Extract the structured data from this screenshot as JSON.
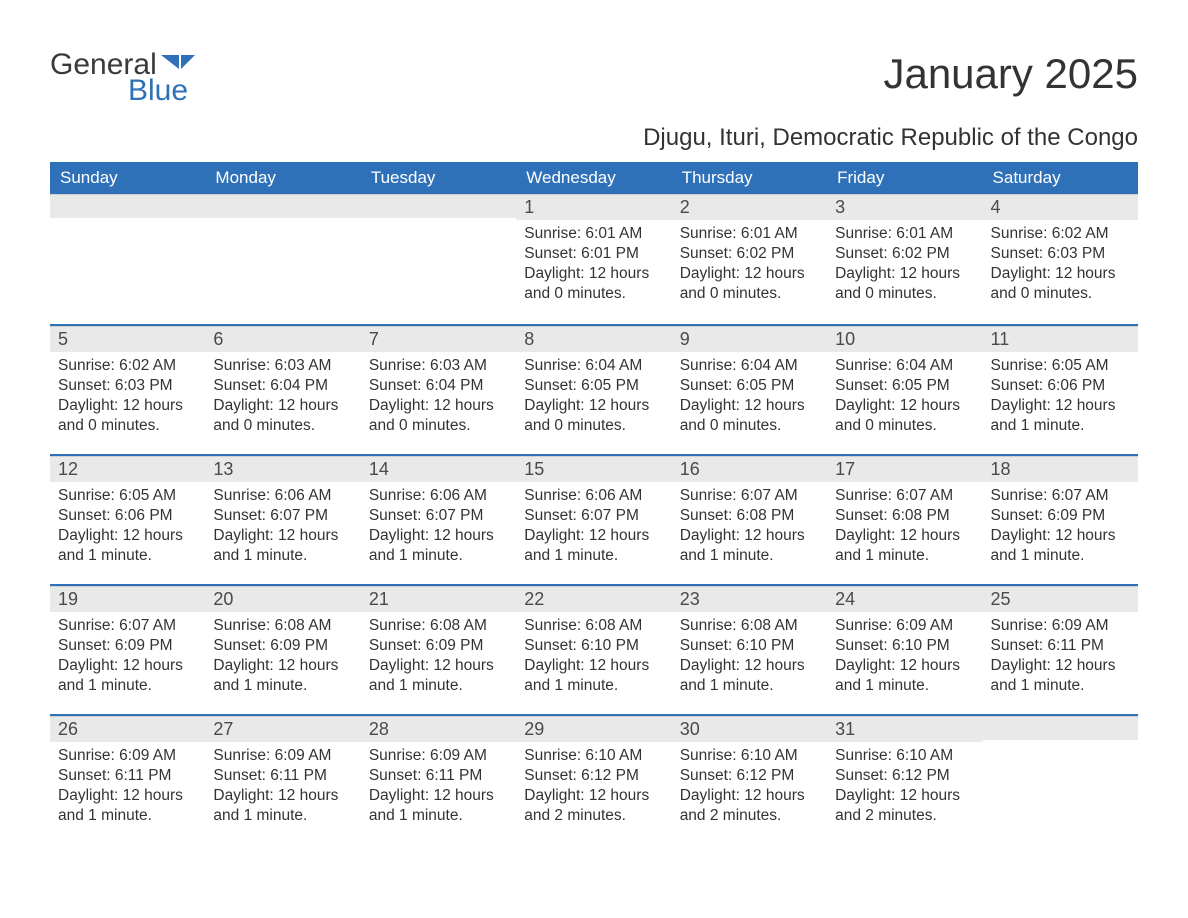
{
  "brand": {
    "part1": "General",
    "part2": "Blue",
    "color1": "#3a3a3a",
    "color2": "#2f71b8"
  },
  "title": "January 2025",
  "location": "Djugu, Ituri, Democratic Republic of the Congo",
  "labels": {
    "sunrise": "Sunrise:",
    "sunset": "Sunset:",
    "daylight": "Daylight:"
  },
  "colors": {
    "header_bg": "#2f71b8",
    "header_text": "#ffffff",
    "daynum_bg": "#e9e9e9",
    "week_border": "#2f71b8",
    "text": "#333333",
    "background": "#ffffff"
  },
  "fontsizes": {
    "title": 42,
    "subtitle": 24,
    "dayheader": 17,
    "daynum": 18,
    "info": 15.5
  },
  "day_headers": [
    "Sunday",
    "Monday",
    "Tuesday",
    "Wednesday",
    "Thursday",
    "Friday",
    "Saturday"
  ],
  "weeks": [
    [
      null,
      null,
      null,
      {
        "n": "1",
        "sunrise": "6:01 AM",
        "sunset": "6:01 PM",
        "daylight": "12 hours and 0 minutes."
      },
      {
        "n": "2",
        "sunrise": "6:01 AM",
        "sunset": "6:02 PM",
        "daylight": "12 hours and 0 minutes."
      },
      {
        "n": "3",
        "sunrise": "6:01 AM",
        "sunset": "6:02 PM",
        "daylight": "12 hours and 0 minutes."
      },
      {
        "n": "4",
        "sunrise": "6:02 AM",
        "sunset": "6:03 PM",
        "daylight": "12 hours and 0 minutes."
      }
    ],
    [
      {
        "n": "5",
        "sunrise": "6:02 AM",
        "sunset": "6:03 PM",
        "daylight": "12 hours and 0 minutes."
      },
      {
        "n": "6",
        "sunrise": "6:03 AM",
        "sunset": "6:04 PM",
        "daylight": "12 hours and 0 minutes."
      },
      {
        "n": "7",
        "sunrise": "6:03 AM",
        "sunset": "6:04 PM",
        "daylight": "12 hours and 0 minutes."
      },
      {
        "n": "8",
        "sunrise": "6:04 AM",
        "sunset": "6:05 PM",
        "daylight": "12 hours and 0 minutes."
      },
      {
        "n": "9",
        "sunrise": "6:04 AM",
        "sunset": "6:05 PM",
        "daylight": "12 hours and 0 minutes."
      },
      {
        "n": "10",
        "sunrise": "6:04 AM",
        "sunset": "6:05 PM",
        "daylight": "12 hours and 0 minutes."
      },
      {
        "n": "11",
        "sunrise": "6:05 AM",
        "sunset": "6:06 PM",
        "daylight": "12 hours and 1 minute."
      }
    ],
    [
      {
        "n": "12",
        "sunrise": "6:05 AM",
        "sunset": "6:06 PM",
        "daylight": "12 hours and 1 minute."
      },
      {
        "n": "13",
        "sunrise": "6:06 AM",
        "sunset": "6:07 PM",
        "daylight": "12 hours and 1 minute."
      },
      {
        "n": "14",
        "sunrise": "6:06 AM",
        "sunset": "6:07 PM",
        "daylight": "12 hours and 1 minute."
      },
      {
        "n": "15",
        "sunrise": "6:06 AM",
        "sunset": "6:07 PM",
        "daylight": "12 hours and 1 minute."
      },
      {
        "n": "16",
        "sunrise": "6:07 AM",
        "sunset": "6:08 PM",
        "daylight": "12 hours and 1 minute."
      },
      {
        "n": "17",
        "sunrise": "6:07 AM",
        "sunset": "6:08 PM",
        "daylight": "12 hours and 1 minute."
      },
      {
        "n": "18",
        "sunrise": "6:07 AM",
        "sunset": "6:09 PM",
        "daylight": "12 hours and 1 minute."
      }
    ],
    [
      {
        "n": "19",
        "sunrise": "6:07 AM",
        "sunset": "6:09 PM",
        "daylight": "12 hours and 1 minute."
      },
      {
        "n": "20",
        "sunrise": "6:08 AM",
        "sunset": "6:09 PM",
        "daylight": "12 hours and 1 minute."
      },
      {
        "n": "21",
        "sunrise": "6:08 AM",
        "sunset": "6:09 PM",
        "daylight": "12 hours and 1 minute."
      },
      {
        "n": "22",
        "sunrise": "6:08 AM",
        "sunset": "6:10 PM",
        "daylight": "12 hours and 1 minute."
      },
      {
        "n": "23",
        "sunrise": "6:08 AM",
        "sunset": "6:10 PM",
        "daylight": "12 hours and 1 minute."
      },
      {
        "n": "24",
        "sunrise": "6:09 AM",
        "sunset": "6:10 PM",
        "daylight": "12 hours and 1 minute."
      },
      {
        "n": "25",
        "sunrise": "6:09 AM",
        "sunset": "6:11 PM",
        "daylight": "12 hours and 1 minute."
      }
    ],
    [
      {
        "n": "26",
        "sunrise": "6:09 AM",
        "sunset": "6:11 PM",
        "daylight": "12 hours and 1 minute."
      },
      {
        "n": "27",
        "sunrise": "6:09 AM",
        "sunset": "6:11 PM",
        "daylight": "12 hours and 1 minute."
      },
      {
        "n": "28",
        "sunrise": "6:09 AM",
        "sunset": "6:11 PM",
        "daylight": "12 hours and 1 minute."
      },
      {
        "n": "29",
        "sunrise": "6:10 AM",
        "sunset": "6:12 PM",
        "daylight": "12 hours and 2 minutes."
      },
      {
        "n": "30",
        "sunrise": "6:10 AM",
        "sunset": "6:12 PM",
        "daylight": "12 hours and 2 minutes."
      },
      {
        "n": "31",
        "sunrise": "6:10 AM",
        "sunset": "6:12 PM",
        "daylight": "12 hours and 2 minutes."
      },
      null
    ]
  ]
}
